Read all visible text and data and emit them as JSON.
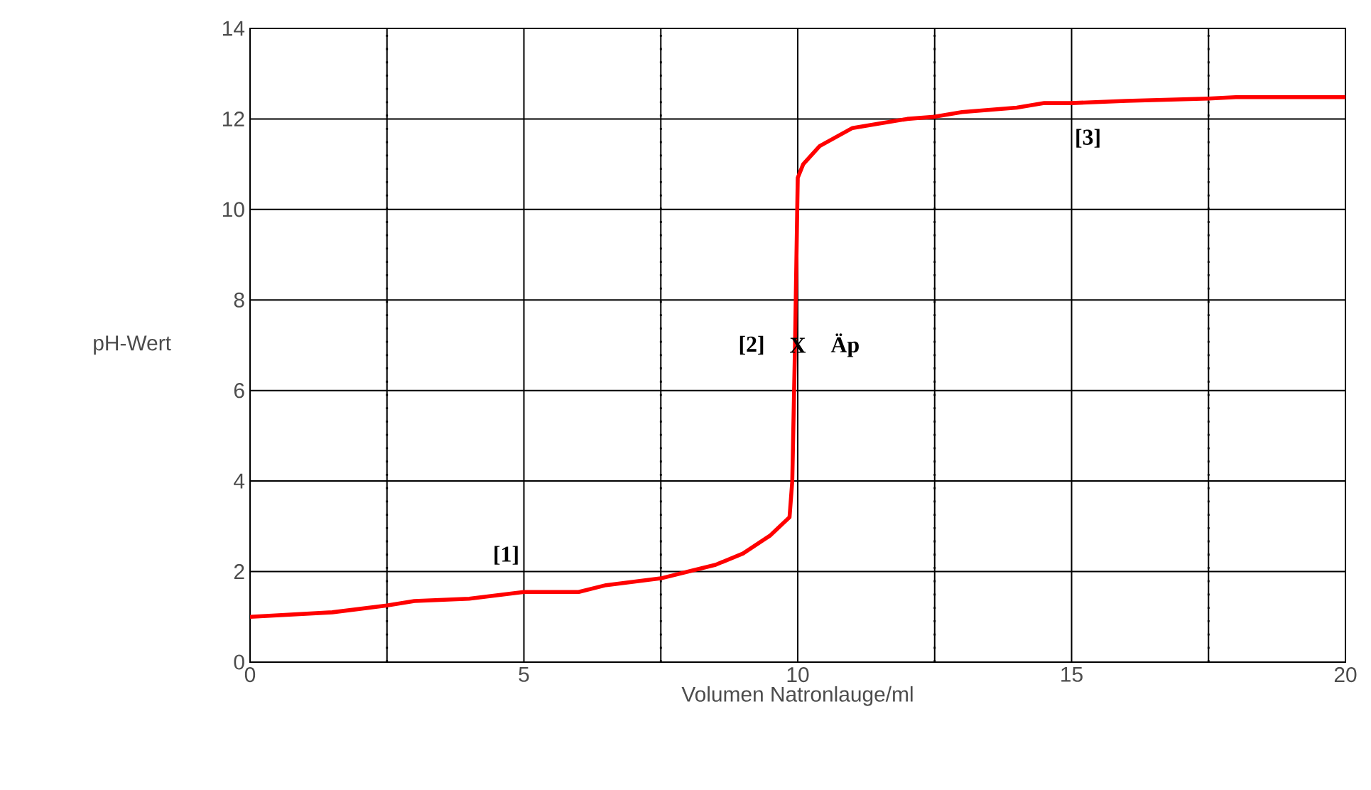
{
  "chart_data": {
    "type": "line",
    "xlabel": "Volumen Natronlauge/ml",
    "ylabel": "pH-Wert",
    "xlim": [
      0,
      20
    ],
    "ylim": [
      0,
      14
    ],
    "xticks": [
      0,
      {
        "value": 2.5,
        "label": null
      },
      5,
      {
        "value": 7.5,
        "label": null
      },
      10,
      {
        "value": 12.5,
        "label": null
      },
      15,
      {
        "value": 17.5,
        "label": null
      },
      20
    ],
    "yticks": [
      0,
      2,
      4,
      6,
      8,
      10,
      12,
      14
    ],
    "grid": true,
    "line_style": "solid",
    "x": [
      0,
      1.5,
      2.5,
      3,
      4,
      5,
      6,
      6.5,
      7.5,
      8,
      8.5,
      9,
      9.5,
      9.85,
      9.9,
      9.95,
      10.0,
      10.1,
      10.4,
      11,
      11.5,
      12,
      12.5,
      13,
      14,
      14.5,
      15,
      16,
      17.5,
      18,
      20
    ],
    "series": [
      {
        "color": "#ff0000",
        "values": [
          1.0,
          1.1,
          1.25,
          1.35,
          1.4,
          1.55,
          1.55,
          1.7,
          1.85,
          2.0,
          2.15,
          2.4,
          2.8,
          3.2,
          4.0,
          7.0,
          10.7,
          11.0,
          11.4,
          11.8,
          11.9,
          12.0,
          12.05,
          12.15,
          12.25,
          12.35,
          12.35,
          12.4,
          12.45,
          12.48,
          12.48
        ]
      }
    ],
    "annotations": [
      {
        "text": "[1]",
        "x": 5,
        "y": 1.55
      },
      {
        "text": "[2]",
        "x": 10,
        "y": 7
      },
      {
        "text": "X",
        "x": 10,
        "y": 7
      },
      {
        "text": "Äp",
        "x": 10,
        "y": 7
      },
      {
        "text": "[3]",
        "x": 15,
        "y": 12.35
      }
    ]
  }
}
